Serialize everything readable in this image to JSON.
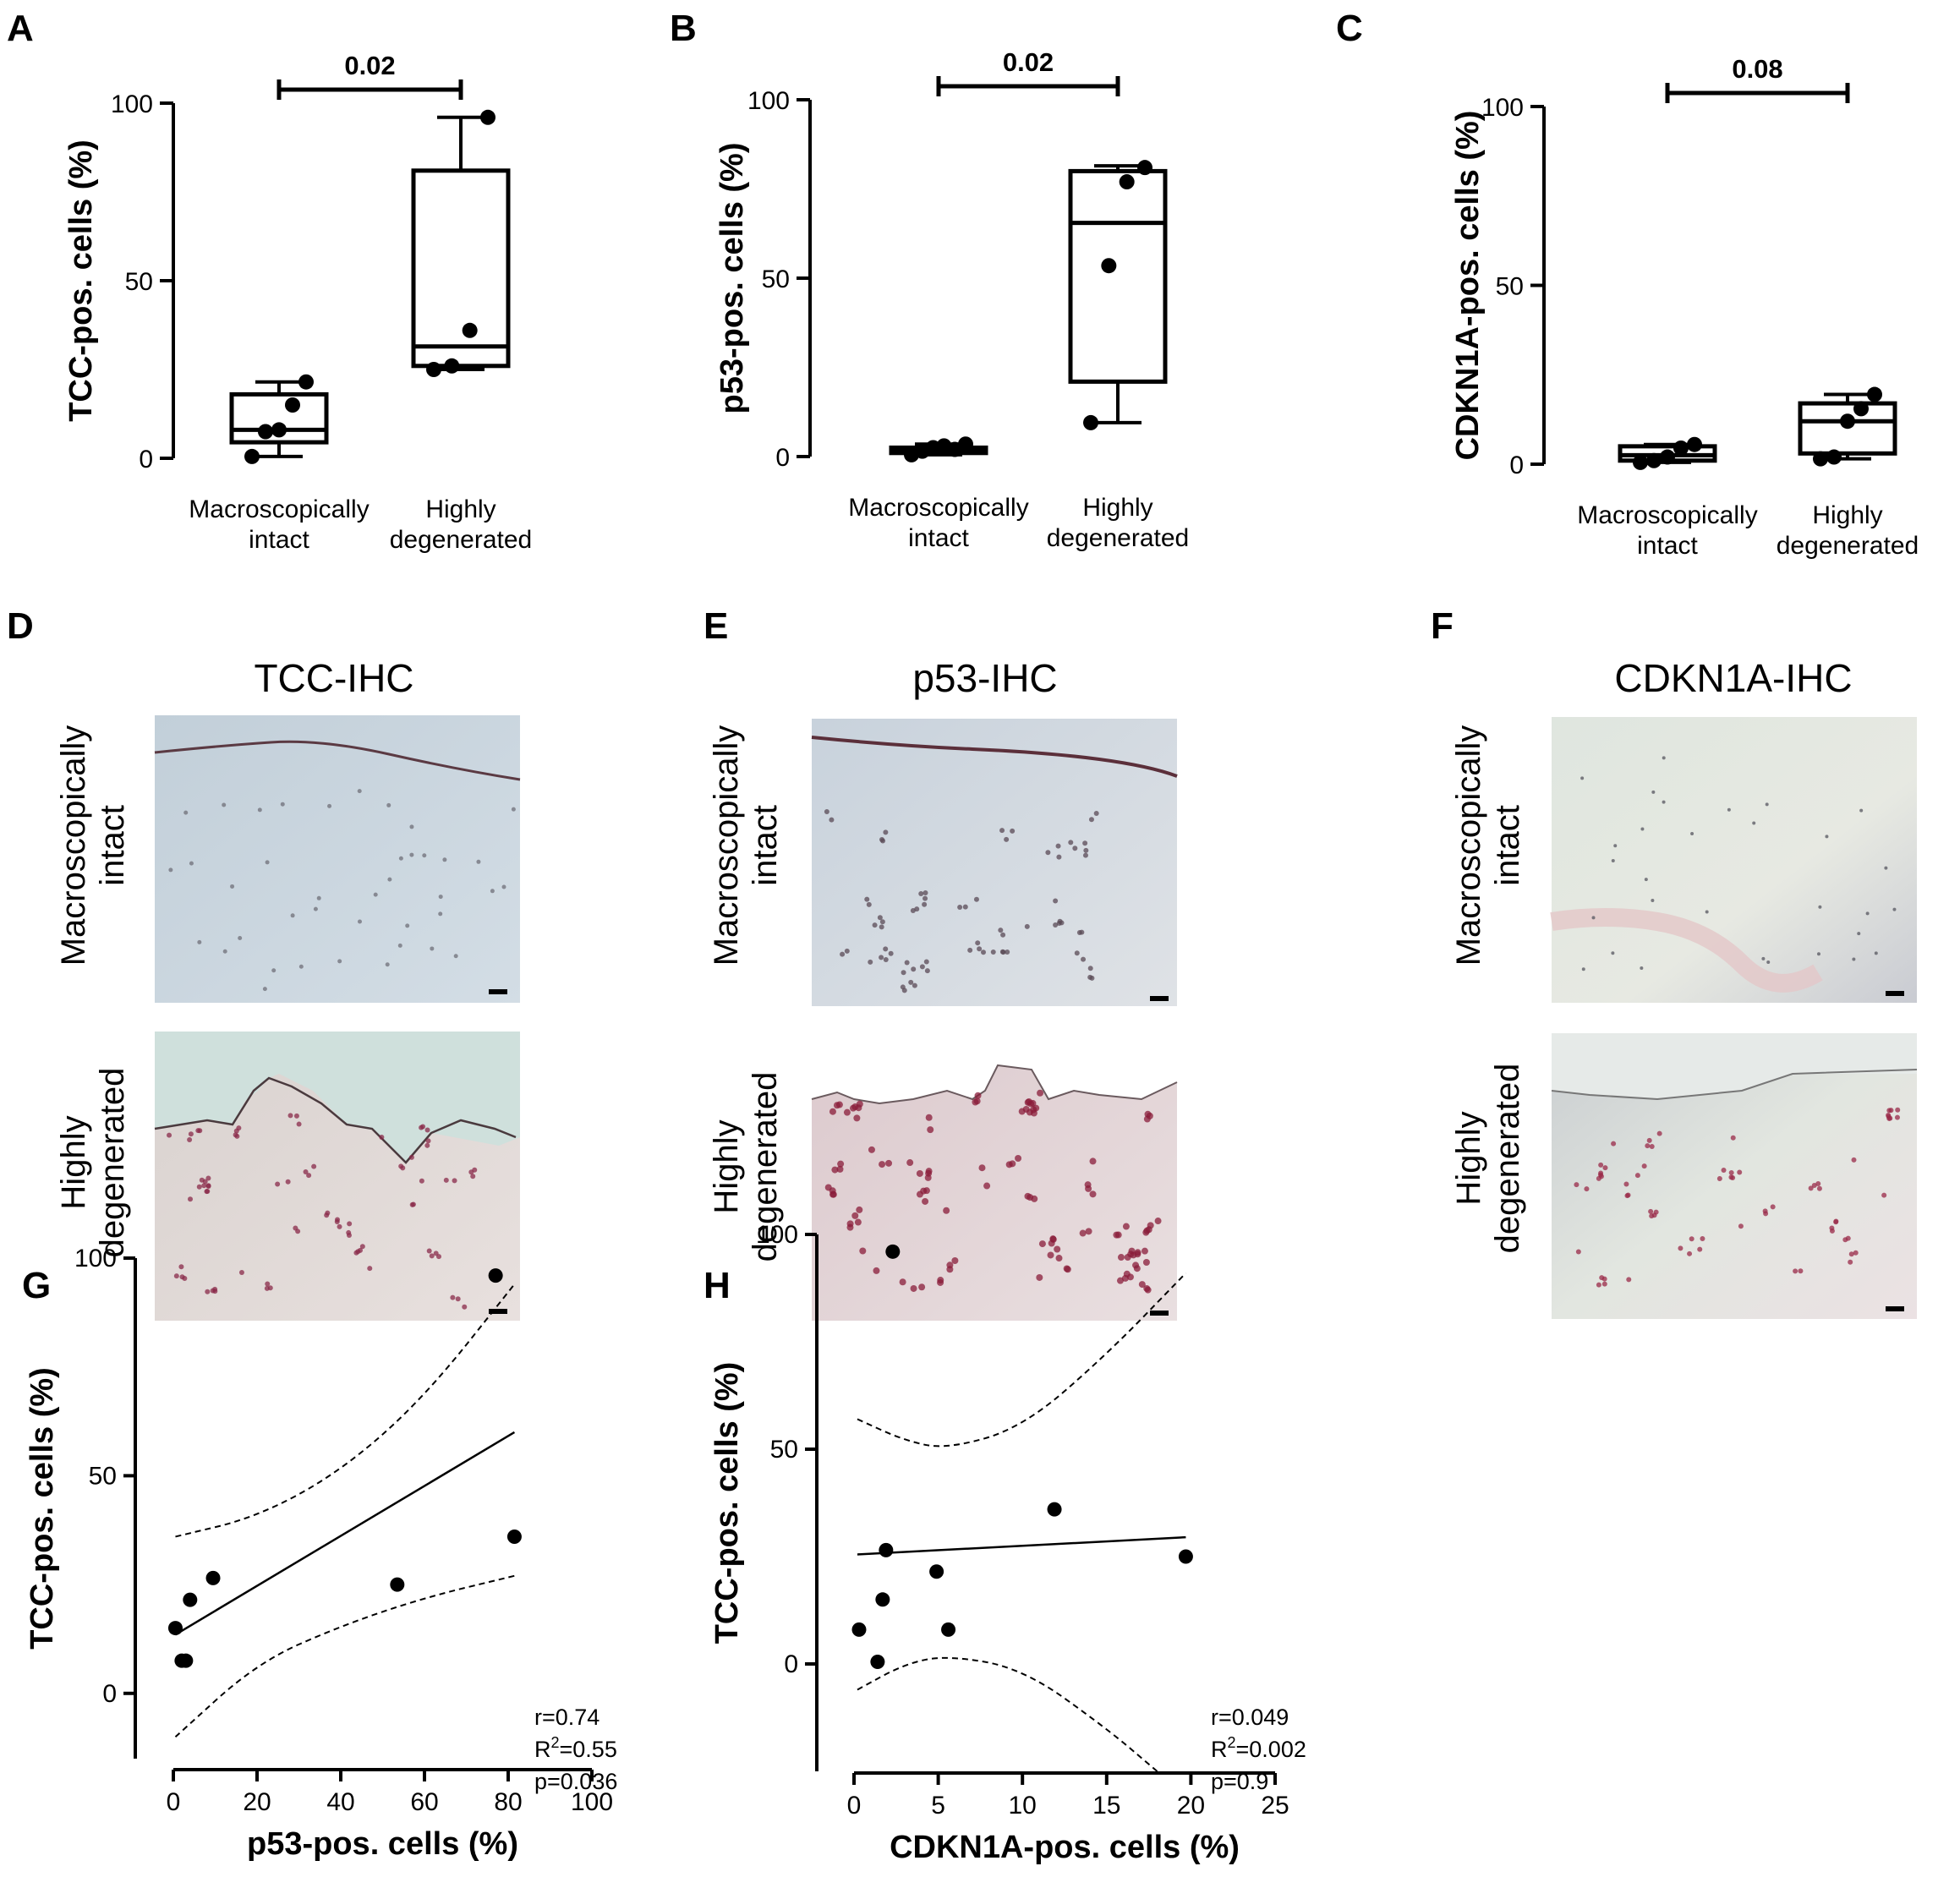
{
  "panel_labels": [
    "A",
    "B",
    "C",
    "D",
    "E",
    "F",
    "G",
    "H"
  ],
  "chart_data": [
    {
      "id": "A",
      "type": "box",
      "ylabel": "TCC-pos. cells (%)",
      "yticks": [
        0,
        50,
        100
      ],
      "ylim": [
        0,
        100
      ],
      "categories": [
        {
          "line1": "Macroscopically",
          "line2": "intact"
        },
        {
          "line1": "Highly",
          "line2": "degenerated"
        }
      ],
      "groups": [
        {
          "min": 0.5,
          "q1": 4.5,
          "median": 8,
          "q3": 18,
          "max": 21.5,
          "points": [
            0.5,
            7.5,
            8,
            15,
            21.5
          ]
        },
        {
          "min": 25,
          "q1": 26,
          "median": 31.5,
          "q3": 81,
          "max": 96,
          "points": [
            25,
            26,
            36,
            96
          ]
        }
      ],
      "comparison": {
        "label": "0.02",
        "from": 0,
        "to": 1
      }
    },
    {
      "id": "B",
      "type": "box",
      "ylabel": "p53-pos. cells (%)",
      "yticks": [
        0,
        50,
        100
      ],
      "ylim": [
        0,
        100
      ],
      "categories": [
        {
          "line1": "Macroscopically",
          "line2": "intact"
        },
        {
          "line1": "Highly",
          "line2": "degenerated"
        }
      ],
      "groups": [
        {
          "min": 0.5,
          "q1": 1,
          "median": 2,
          "q3": 2.5,
          "max": 3.5,
          "points": [
            0.5,
            1.5,
            2.5,
            3,
            2,
            3.5
          ]
        },
        {
          "min": 9.5,
          "q1": 21,
          "median": 65.5,
          "q3": 80,
          "max": 81.5,
          "points": [
            9.5,
            53.5,
            77,
            81
          ]
        }
      ],
      "comparison": {
        "label": "0.02",
        "from": 0,
        "to": 1
      }
    },
    {
      "id": "C",
      "type": "box",
      "ylabel": "CDKN1A-pos. cells (%)",
      "yticks": [
        0,
        50,
        100
      ],
      "ylim": [
        0,
        100
      ],
      "categories": [
        {
          "line1": "Macroscopically",
          "line2": "intact"
        },
        {
          "line1": "Highly",
          "line2": "degenerated"
        }
      ],
      "groups": [
        {
          "min": 0.5,
          "q1": 1,
          "median": 2.5,
          "q3": 5,
          "max": 5.5,
          "points": [
            0.5,
            1,
            2,
            4.5,
            5.5
          ]
        },
        {
          "min": 1.5,
          "q1": 3,
          "median": 12,
          "q3": 17,
          "max": 19.5,
          "points": [
            1.5,
            2,
            12,
            15.5,
            19.5
          ]
        }
      ],
      "comparison": {
        "label": "0.08",
        "from": 0,
        "to": 1
      }
    },
    {
      "id": "G",
      "type": "scatter",
      "xlabel": "p53-pos. cells (%)",
      "ylabel": "TCC-pos. cells (%)",
      "xlim": [
        0,
        100
      ],
      "ylim": [
        -15,
        100
      ],
      "xticks": [
        0,
        20,
        40,
        60,
        80,
        100
      ],
      "yticks": [
        0,
        50,
        100
      ],
      "points": [
        [
          0.5,
          15
        ],
        [
          2,
          7.5
        ],
        [
          3,
          7.5
        ],
        [
          4,
          21.5
        ],
        [
          9.5,
          26.5
        ],
        [
          53.5,
          25
        ],
        [
          77,
          96
        ],
        [
          81.5,
          36
        ]
      ],
      "fit": {
        "x0": 0.5,
        "y0": 13.5,
        "x1": 81.5,
        "y1": 60
      },
      "ci_upper": [
        [
          0.5,
          36
        ],
        [
          20,
          40.5
        ],
        [
          40,
          51
        ],
        [
          60,
          68
        ],
        [
          81.5,
          94
        ]
      ],
      "ci_lower": [
        [
          0.5,
          -10
        ],
        [
          20,
          7
        ],
        [
          40,
          15.5
        ],
        [
          60,
          22
        ],
        [
          81.5,
          27
        ]
      ],
      "stats": {
        "r": "r=0.74",
        "r2_prefix": "R",
        "r2_sup": "2",
        "r2_value": "=0.55",
        "p": "p=0.036"
      }
    },
    {
      "id": "H",
      "type": "scatter",
      "xlabel": "CDKN1A-pos. cells (%)",
      "ylabel": "TCC-pos. cells (%)",
      "xlim": [
        0,
        25
      ],
      "ylim": [
        -25,
        100
      ],
      "xticks": [
        0,
        5,
        10,
        15,
        20,
        25
      ],
      "yticks": [
        0,
        50,
        100
      ],
      "points": [
        [
          0.3,
          8
        ],
        [
          1.4,
          0.5
        ],
        [
          1.7,
          15
        ],
        [
          1.9,
          26.5
        ],
        [
          2.3,
          96
        ],
        [
          4.9,
          21.5
        ],
        [
          5.6,
          8
        ],
        [
          11.9,
          36
        ],
        [
          19.7,
          25
        ]
      ],
      "fit": {
        "x0": 0.2,
        "y0": 25.5,
        "x1": 19.7,
        "y1": 29.5
      },
      "ci_upper": [
        [
          0.2,
          57
        ],
        [
          3,
          52
        ],
        [
          5.5,
          50
        ],
        [
          10,
          55
        ],
        [
          15,
          72
        ],
        [
          19.7,
          91
        ]
      ],
      "ci_lower": [
        [
          0.2,
          -6
        ],
        [
          3,
          0
        ],
        [
          5.5,
          2
        ],
        [
          10,
          -1
        ],
        [
          15,
          -15
        ],
        [
          18,
          -25
        ]
      ],
      "stats": {
        "r": "r=0.049",
        "r2_prefix": "R",
        "r2_sup": "2",
        "r2_value": "=0.002",
        "p": "p=0.9"
      }
    }
  ],
  "ihc": [
    {
      "id": "D",
      "title": "TCC-IHC",
      "stain": "TCC"
    },
    {
      "id": "E",
      "title": "p53-IHC",
      "stain": "p53"
    },
    {
      "id": "F",
      "title": "CDKN1A-IHC",
      "stain": "CDKN1A"
    }
  ],
  "ihc_rows": [
    {
      "line1": "Macroscopically",
      "line2": "intact"
    },
    {
      "line1": "Highly",
      "line2": "degenerated"
    }
  ],
  "colors": {
    "ink": "#000000",
    "tissue_blue": "#c9d5de",
    "tissue_pink": "#e6d7d6",
    "stain_red": "#8a1c3a"
  }
}
